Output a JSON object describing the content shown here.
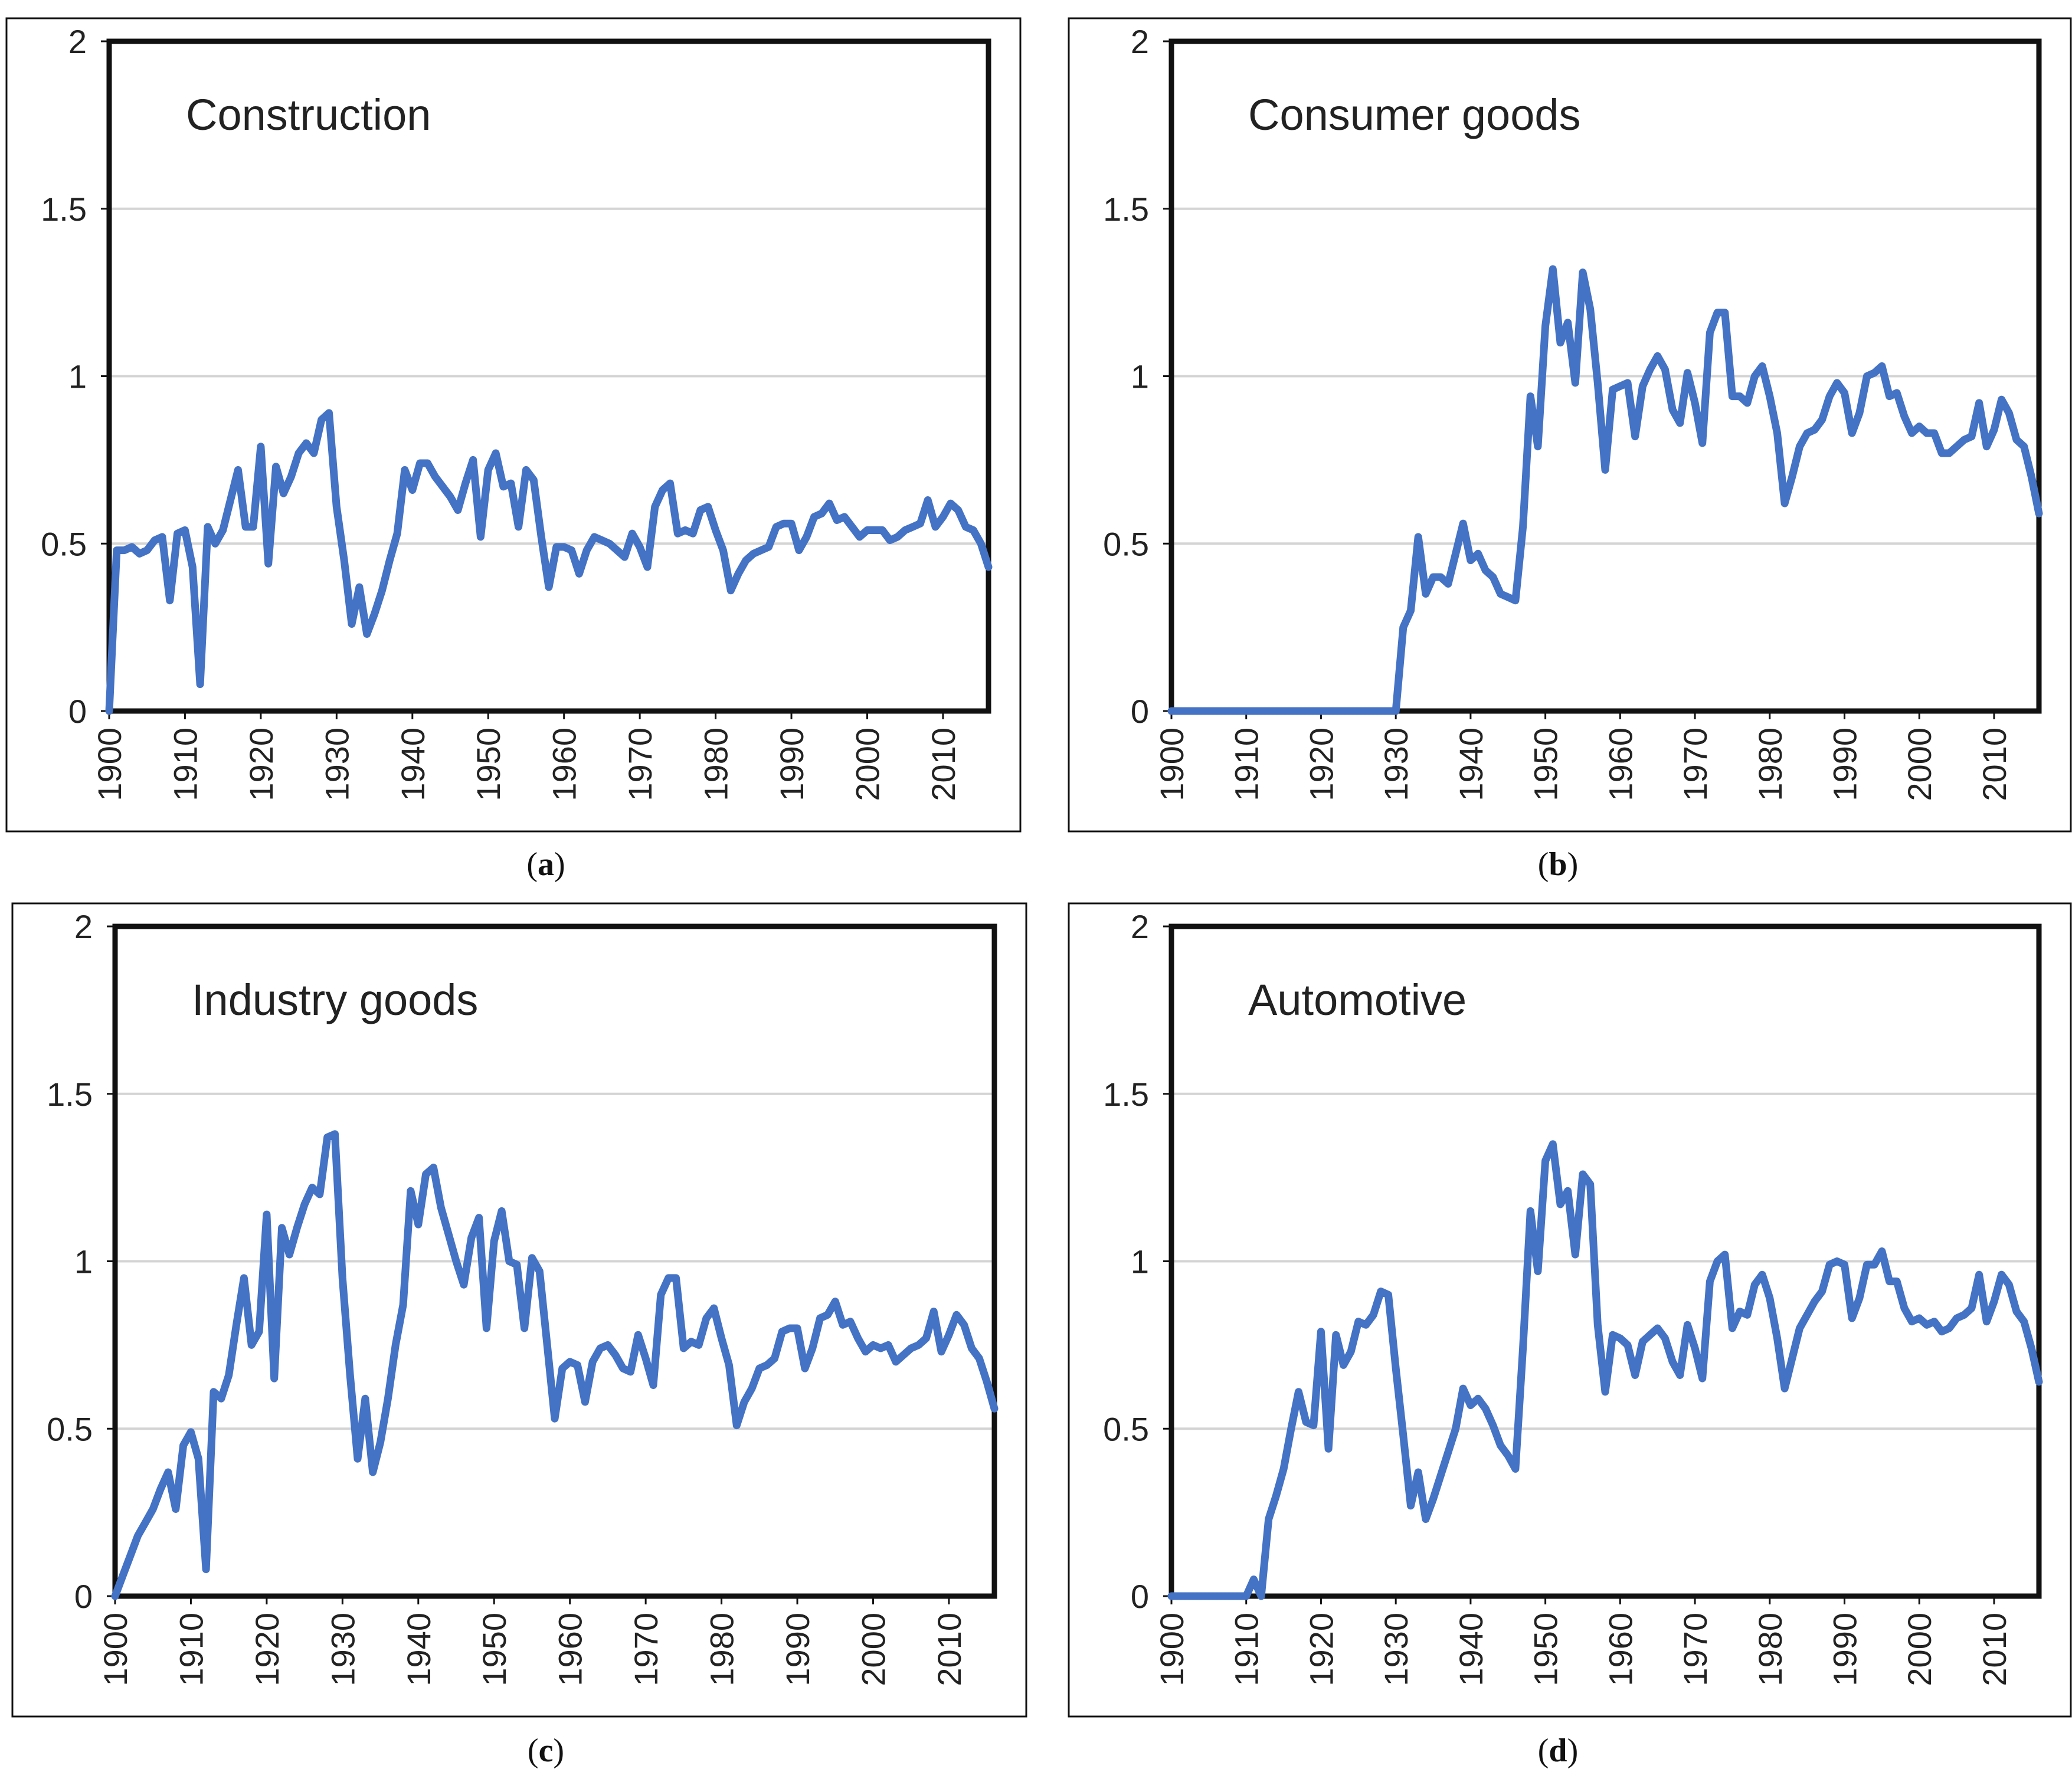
{
  "panels": [
    {
      "id": "a",
      "caption_letter": "a"
    },
    {
      "id": "b",
      "caption_letter": "b"
    },
    {
      "id": "c",
      "caption_letter": "c"
    },
    {
      "id": "d",
      "caption_letter": "d"
    }
  ],
  "chart_data": [
    {
      "type": "line",
      "title": "Construction",
      "xlabel": "",
      "ylabel": "",
      "ylim": [
        0,
        2
      ],
      "xlim": [
        1900,
        2016
      ],
      "yticks": [
        "0",
        "0.5",
        "1",
        "1.5",
        "2"
      ],
      "xticks": [
        "1900",
        "1910",
        "1920",
        "1930",
        "1940",
        "1950",
        "1960",
        "1970",
        "1980",
        "1990",
        "2000",
        "2010"
      ],
      "grid": true,
      "color": "#4472C4",
      "x": [
        1900,
        1901,
        1902,
        1903,
        1904,
        1905,
        1906,
        1907,
        1908,
        1909,
        1910,
        1911,
        1912,
        1913,
        1914,
        1915,
        1916,
        1917,
        1918,
        1919,
        1920,
        1921,
        1922,
        1923,
        1924,
        1925,
        1926,
        1927,
        1928,
        1929,
        1930,
        1931,
        1932,
        1933,
        1934,
        1935,
        1936,
        1937,
        1938,
        1939,
        1940,
        1941,
        1942,
        1943,
        1944,
        1945,
        1946,
        1947,
        1948,
        1949,
        1950,
        1951,
        1952,
        1953,
        1954,
        1955,
        1956,
        1957,
        1958,
        1959,
        1960,
        1961,
        1962,
        1963,
        1964,
        1965,
        1966,
        1967,
        1968,
        1969,
        1970,
        1971,
        1972,
        1973,
        1974,
        1975,
        1976,
        1977,
        1978,
        1979,
        1980,
        1981,
        1982,
        1983,
        1984,
        1985,
        1986,
        1987,
        1988,
        1989,
        1990,
        1991,
        1992,
        1993,
        1994,
        1995,
        1996,
        1997,
        1998,
        1999,
        2000,
        2001,
        2002,
        2003,
        2004,
        2005,
        2006,
        2007,
        2008,
        2009,
        2010,
        2011,
        2012,
        2013,
        2014,
        2015,
        2016
      ],
      "y": [
        0.0,
        0.48,
        0.48,
        0.49,
        0.47,
        0.48,
        0.51,
        0.52,
        0.33,
        0.53,
        0.54,
        0.43,
        0.08,
        0.55,
        0.5,
        0.54,
        0.63,
        0.72,
        0.55,
        0.55,
        0.79,
        0.44,
        0.73,
        0.65,
        0.7,
        0.77,
        0.8,
        0.77,
        0.87,
        0.89,
        0.61,
        0.45,
        0.26,
        0.37,
        0.23,
        0.29,
        0.36,
        0.45,
        0.53,
        0.72,
        0.66,
        0.74,
        0.74,
        0.7,
        0.67,
        0.64,
        0.6,
        0.68,
        0.75,
        0.52,
        0.72,
        0.77,
        0.67,
        0.68,
        0.55,
        0.72,
        0.69,
        0.52,
        0.37,
        0.49,
        0.49,
        0.48,
        0.41,
        0.48,
        0.52,
        0.51,
        0.5,
        0.48,
        0.46,
        0.53,
        0.49,
        0.43,
        0.61,
        0.66,
        0.68,
        0.53,
        0.54,
        0.53,
        0.6,
        0.61,
        0.54,
        0.48,
        0.36,
        0.41,
        0.45,
        0.47,
        0.48,
        0.49,
        0.55,
        0.56,
        0.56,
        0.48,
        0.52,
        0.58,
        0.59,
        0.62,
        0.57,
        0.58,
        0.55,
        0.52,
        0.54,
        0.54,
        0.54,
        0.51,
        0.52,
        0.54,
        0.55,
        0.56,
        0.63,
        0.55,
        0.58,
        0.62,
        0.6,
        0.55,
        0.54,
        0.5,
        0.43
      ]
    },
    {
      "type": "line",
      "title": "Consumer goods",
      "xlabel": "",
      "ylabel": "",
      "ylim": [
        0,
        2
      ],
      "xlim": [
        1900,
        2016
      ],
      "yticks": [
        "0",
        "0.5",
        "1",
        "1.5",
        "2"
      ],
      "xticks": [
        "1900",
        "1910",
        "1920",
        "1930",
        "1940",
        "1950",
        "1960",
        "1970",
        "1980",
        "1990",
        "2000",
        "2010"
      ],
      "grid": true,
      "color": "#4472C4",
      "x": [
        1900,
        1901,
        1902,
        1903,
        1904,
        1905,
        1906,
        1907,
        1908,
        1909,
        1910,
        1911,
        1912,
        1913,
        1914,
        1915,
        1916,
        1917,
        1918,
        1919,
        1920,
        1921,
        1922,
        1923,
        1924,
        1925,
        1926,
        1927,
        1928,
        1929,
        1930,
        1931,
        1932,
        1933,
        1934,
        1935,
        1936,
        1937,
        1938,
        1939,
        1940,
        1941,
        1942,
        1943,
        1944,
        1945,
        1946,
        1947,
        1948,
        1949,
        1950,
        1951,
        1952,
        1953,
        1954,
        1955,
        1956,
        1957,
        1958,
        1959,
        1960,
        1961,
        1962,
        1963,
        1964,
        1965,
        1966,
        1967,
        1968,
        1969,
        1970,
        1971,
        1972,
        1973,
        1974,
        1975,
        1976,
        1977,
        1978,
        1979,
        1980,
        1981,
        1982,
        1983,
        1984,
        1985,
        1986,
        1987,
        1988,
        1989,
        1990,
        1991,
        1992,
        1993,
        1994,
        1995,
        1996,
        1997,
        1998,
        1999,
        2000,
        2001,
        2002,
        2003,
        2004,
        2005,
        2006,
        2007,
        2008,
        2009,
        2010,
        2011,
        2012,
        2013,
        2014,
        2015,
        2016
      ],
      "y": [
        0,
        0,
        0,
        0,
        0,
        0,
        0,
        0,
        0,
        0,
        0,
        0,
        0,
        0,
        0,
        0,
        0,
        0,
        0,
        0,
        0,
        0,
        0,
        0,
        0,
        0,
        0,
        0,
        0,
        0,
        0,
        0.25,
        0.3,
        0.52,
        0.35,
        0.4,
        0.4,
        0.38,
        0.47,
        0.56,
        0.45,
        0.47,
        0.42,
        0.4,
        0.35,
        0.34,
        0.33,
        0.55,
        0.94,
        0.79,
        1.15,
        1.32,
        1.1,
        1.16,
        0.98,
        1.31,
        1.2,
        0.98,
        0.72,
        0.96,
        0.97,
        0.98,
        0.82,
        0.97,
        1.02,
        1.06,
        1.02,
        0.9,
        0.86,
        1.01,
        0.92,
        0.8,
        1.13,
        1.19,
        1.19,
        0.94,
        0.94,
        0.92,
        1.0,
        1.03,
        0.94,
        0.83,
        0.62,
        0.7,
        0.79,
        0.83,
        0.84,
        0.87,
        0.94,
        0.98,
        0.95,
        0.83,
        0.89,
        1.0,
        1.01,
        1.03,
        0.94,
        0.95,
        0.88,
        0.83,
        0.85,
        0.83,
        0.83,
        0.77,
        0.77,
        0.79,
        0.81,
        0.82,
        0.92,
        0.79,
        0.84,
        0.93,
        0.89,
        0.81,
        0.79,
        0.7,
        0.59
      ]
    },
    {
      "type": "line",
      "title": "Industry goods",
      "xlabel": "",
      "ylabel": "",
      "ylim": [
        0,
        2
      ],
      "xlim": [
        1900,
        2016
      ],
      "yticks": [
        "0",
        "0.5",
        "1",
        "1.5",
        "2"
      ],
      "xticks": [
        "1900",
        "1910",
        "1920",
        "1930",
        "1940",
        "1950",
        "1960",
        "1970",
        "1980",
        "1990",
        "2000",
        "2010"
      ],
      "grid": true,
      "color": "#4472C4",
      "x": [
        1900,
        1901,
        1902,
        1903,
        1904,
        1905,
        1906,
        1907,
        1908,
        1909,
        1910,
        1911,
        1912,
        1913,
        1914,
        1915,
        1916,
        1917,
        1918,
        1919,
        1920,
        1921,
        1922,
        1923,
        1924,
        1925,
        1926,
        1927,
        1928,
        1929,
        1930,
        1931,
        1932,
        1933,
        1934,
        1935,
        1936,
        1937,
        1938,
        1939,
        1940,
        1941,
        1942,
        1943,
        1944,
        1945,
        1946,
        1947,
        1948,
        1949,
        1950,
        1951,
        1952,
        1953,
        1954,
        1955,
        1956,
        1957,
        1958,
        1959,
        1960,
        1961,
        1962,
        1963,
        1964,
        1965,
        1966,
        1967,
        1968,
        1969,
        1970,
        1971,
        1972,
        1973,
        1974,
        1975,
        1976,
        1977,
        1978,
        1979,
        1980,
        1981,
        1982,
        1983,
        1984,
        1985,
        1986,
        1987,
        1988,
        1989,
        1990,
        1991,
        1992,
        1993,
        1994,
        1995,
        1996,
        1997,
        1998,
        1999,
        2000,
        2001,
        2002,
        2003,
        2004,
        2005,
        2006,
        2007,
        2008,
        2009,
        2010,
        2011,
        2012,
        2013,
        2014,
        2015,
        2016
      ],
      "y": [
        0.0,
        0.06,
        0.12,
        0.18,
        0.22,
        0.26,
        0.32,
        0.37,
        0.26,
        0.45,
        0.49,
        0.41,
        0.08,
        0.61,
        0.59,
        0.66,
        0.81,
        0.95,
        0.75,
        0.79,
        1.14,
        0.65,
        1.1,
        1.02,
        1.1,
        1.17,
        1.22,
        1.2,
        1.37,
        1.38,
        0.95,
        0.66,
        0.41,
        0.59,
        0.37,
        0.46,
        0.59,
        0.75,
        0.87,
        1.21,
        1.11,
        1.26,
        1.28,
        1.16,
        1.08,
        1.0,
        0.93,
        1.07,
        1.13,
        0.8,
        1.06,
        1.15,
        1.0,
        0.99,
        0.8,
        1.01,
        0.97,
        0.75,
        0.53,
        0.68,
        0.7,
        0.69,
        0.58,
        0.7,
        0.74,
        0.75,
        0.72,
        0.68,
        0.67,
        0.78,
        0.71,
        0.63,
        0.9,
        0.95,
        0.95,
        0.74,
        0.76,
        0.75,
        0.83,
        0.86,
        0.77,
        0.69,
        0.51,
        0.58,
        0.62,
        0.68,
        0.69,
        0.71,
        0.79,
        0.8,
        0.8,
        0.68,
        0.74,
        0.83,
        0.84,
        0.88,
        0.81,
        0.82,
        0.77,
        0.73,
        0.75,
        0.74,
        0.75,
        0.7,
        0.72,
        0.74,
        0.75,
        0.77,
        0.85,
        0.73,
        0.78,
        0.84,
        0.81,
        0.74,
        0.71,
        0.64,
        0.56
      ]
    },
    {
      "type": "line",
      "title": "Automotive",
      "xlabel": "",
      "ylabel": "",
      "ylim": [
        0,
        2
      ],
      "xlim": [
        1900,
        2016
      ],
      "yticks": [
        "0",
        "0.5",
        "1",
        "1.5",
        "2"
      ],
      "xticks": [
        "1900",
        "1910",
        "1920",
        "1930",
        "1940",
        "1950",
        "1960",
        "1970",
        "1980",
        "1990",
        "2000",
        "2010"
      ],
      "grid": true,
      "color": "#4472C4",
      "x": [
        1900,
        1901,
        1902,
        1903,
        1904,
        1905,
        1906,
        1907,
        1908,
        1909,
        1910,
        1911,
        1912,
        1913,
        1914,
        1915,
        1916,
        1917,
        1918,
        1919,
        1920,
        1921,
        1922,
        1923,
        1924,
        1925,
        1926,
        1927,
        1928,
        1929,
        1930,
        1931,
        1932,
        1933,
        1934,
        1935,
        1936,
        1937,
        1938,
        1939,
        1940,
        1941,
        1942,
        1943,
        1944,
        1945,
        1946,
        1947,
        1948,
        1949,
        1950,
        1951,
        1952,
        1953,
        1954,
        1955,
        1956,
        1957,
        1958,
        1959,
        1960,
        1961,
        1962,
        1963,
        1964,
        1965,
        1966,
        1967,
        1968,
        1969,
        1970,
        1971,
        1972,
        1973,
        1974,
        1975,
        1976,
        1977,
        1978,
        1979,
        1980,
        1981,
        1982,
        1983,
        1984,
        1985,
        1986,
        1987,
        1988,
        1989,
        1990,
        1991,
        1992,
        1993,
        1994,
        1995,
        1996,
        1997,
        1998,
        1999,
        2000,
        2001,
        2002,
        2003,
        2004,
        2005,
        2006,
        2007,
        2008,
        2009,
        2010,
        2011,
        2012,
        2013,
        2014,
        2015,
        2016
      ],
      "y": [
        0,
        0,
        0,
        0,
        0,
        0,
        0,
        0,
        0,
        0,
        0,
        0.05,
        0.0,
        0.23,
        0.3,
        0.38,
        0.5,
        0.61,
        0.52,
        0.51,
        0.79,
        0.44,
        0.78,
        0.69,
        0.73,
        0.82,
        0.81,
        0.84,
        0.91,
        0.9,
        0.68,
        0.48,
        0.27,
        0.37,
        0.23,
        0.29,
        0.36,
        0.43,
        0.5,
        0.62,
        0.57,
        0.59,
        0.56,
        0.51,
        0.45,
        0.42,
        0.38,
        0.74,
        1.15,
        0.97,
        1.3,
        1.35,
        1.17,
        1.21,
        1.02,
        1.26,
        1.23,
        0.81,
        0.61,
        0.78,
        0.77,
        0.75,
        0.66,
        0.76,
        0.78,
        0.8,
        0.77,
        0.7,
        0.66,
        0.81,
        0.74,
        0.65,
        0.94,
        1.0,
        1.02,
        0.8,
        0.85,
        0.84,
        0.93,
        0.96,
        0.89,
        0.77,
        0.62,
        0.71,
        0.8,
        0.84,
        0.88,
        0.91,
        0.99,
        1.0,
        0.99,
        0.83,
        0.89,
        0.99,
        0.99,
        1.03,
        0.94,
        0.94,
        0.86,
        0.82,
        0.83,
        0.81,
        0.82,
        0.79,
        0.8,
        0.83,
        0.84,
        0.86,
        0.96,
        0.82,
        0.88,
        0.96,
        0.93,
        0.85,
        0.82,
        0.74,
        0.64
      ]
    }
  ]
}
